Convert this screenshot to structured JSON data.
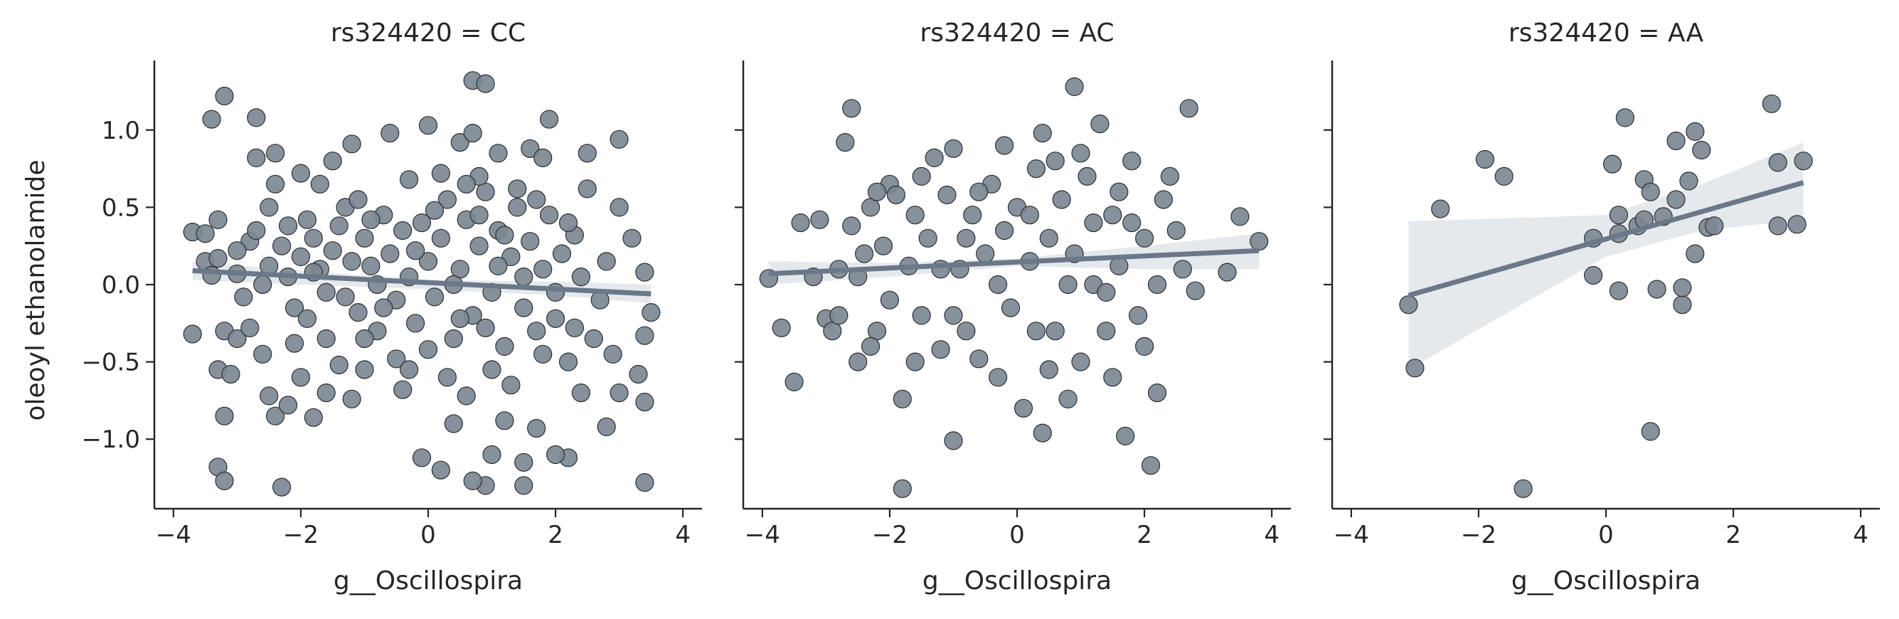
{
  "figure": {
    "ylabel": "oleoyl ethanolamide",
    "xlabel": "g__Oscillospira"
  },
  "colors": {
    "point_fill": "#7d8893",
    "point_stroke": "#2b2f33",
    "line": "#6b7889",
    "band": "#dde2e6",
    "axis": "#262626"
  },
  "chart_data": [
    {
      "type": "scatter",
      "title": "rs324420 = CC",
      "xlabel": "g__Oscillospira",
      "ylabel": "oleoyl ethanolamide",
      "xlim": [
        -4.3,
        4.3
      ],
      "ylim": [
        -1.45,
        1.45
      ],
      "xticks": [
        -4,
        -2,
        0,
        2,
        4
      ],
      "yticks": [
        -1.0,
        -0.5,
        0.0,
        0.5,
        1.0
      ],
      "xtick_labels": [
        "−4",
        "−2",
        "0",
        "2",
        "4"
      ],
      "ytick_labels": [
        "−1.0",
        "−0.5",
        "0.0",
        "0.5",
        "1.0"
      ],
      "regression": {
        "x": [
          -3.7,
          3.5
        ],
        "y": [
          0.09,
          -0.06
        ],
        "band_x": [
          -3.7,
          -2,
          0,
          2,
          3.5
        ],
        "band_lo": [
          0.03,
          0.0,
          -0.03,
          -0.07,
          -0.12
        ],
        "band_hi": [
          0.15,
          0.09,
          0.03,
          0.02,
          0.0
        ]
      },
      "points": [
        [
          -3.4,
          1.07
        ],
        [
          -3.2,
          1.22
        ],
        [
          -2.7,
          1.08
        ],
        [
          -3.7,
          0.34
        ],
        [
          -3.5,
          0.33
        ],
        [
          -3.3,
          0.42
        ],
        [
          -3.5,
          0.15
        ],
        [
          -3.3,
          0.17
        ],
        [
          -3.0,
          0.07
        ],
        [
          -3.4,
          0.06
        ],
        [
          -3.7,
          -0.32
        ],
        [
          -3.2,
          -0.3
        ],
        [
          -3.0,
          -0.35
        ],
        [
          -3.3,
          -0.55
        ],
        [
          -3.1,
          -0.58
        ],
        [
          -3.2,
          -0.85
        ],
        [
          -3.3,
          -1.18
        ],
        [
          -3.2,
          -1.27
        ],
        [
          -2.3,
          -1.31
        ],
        [
          -2.8,
          -0.28
        ],
        [
          -2.6,
          -0.45
        ],
        [
          -2.5,
          -0.72
        ],
        [
          -2.4,
          -0.85
        ],
        [
          -2.2,
          -0.78
        ],
        [
          -2.0,
          -0.6
        ],
        [
          -1.8,
          -0.86
        ],
        [
          -1.6,
          -0.7
        ],
        [
          -1.4,
          -0.52
        ],
        [
          -1.2,
          -0.74
        ],
        [
          -1.0,
          -0.55
        ],
        [
          -2.8,
          0.28
        ],
        [
          -2.7,
          0.35
        ],
        [
          -2.5,
          0.5
        ],
        [
          -2.4,
          0.65
        ],
        [
          -2.3,
          0.25
        ],
        [
          -2.2,
          0.05
        ],
        [
          -2.1,
          -0.15
        ],
        [
          -2.0,
          0.18
        ],
        [
          -1.9,
          0.42
        ],
        [
          -1.8,
          0.3
        ],
        [
          -1.7,
          0.1
        ],
        [
          -1.6,
          -0.05
        ],
        [
          -1.5,
          0.22
        ],
        [
          -1.4,
          0.38
        ],
        [
          -1.3,
          0.5
        ],
        [
          -1.2,
          0.15
        ],
        [
          -1.1,
          -0.18
        ],
        [
          -1.0,
          0.3
        ],
        [
          -0.9,
          0.12
        ],
        [
          -0.8,
          -0.3
        ],
        [
          -0.7,
          0.45
        ],
        [
          -0.6,
          0.2
        ],
        [
          -0.5,
          -0.1
        ],
        [
          -0.4,
          0.35
        ],
        [
          -0.3,
          0.05
        ],
        [
          -0.2,
          -0.25
        ],
        [
          -0.1,
          0.4
        ],
        [
          0.0,
          0.15
        ],
        [
          0.1,
          -0.08
        ],
        [
          0.2,
          0.3
        ],
        [
          0.3,
          0.55
        ],
        [
          0.4,
          -0.35
        ],
        [
          0.5,
          0.1
        ],
        [
          0.6,
          0.42
        ],
        [
          0.7,
          -0.2
        ],
        [
          0.8,
          0.25
        ],
        [
          0.9,
          0.6
        ],
        [
          1.0,
          -0.05
        ],
        [
          1.1,
          0.35
        ],
        [
          1.2,
          -0.4
        ],
        [
          1.3,
          0.18
        ],
        [
          1.4,
          0.5
        ],
        [
          1.5,
          -0.15
        ],
        [
          1.6,
          0.28
        ],
        [
          1.7,
          -0.3
        ],
        [
          1.8,
          0.1
        ],
        [
          1.9,
          0.45
        ],
        [
          2.0,
          -0.22
        ],
        [
          2.1,
          0.2
        ],
        [
          2.2,
          -0.5
        ],
        [
          2.3,
          0.32
        ],
        [
          2.4,
          0.05
        ],
        [
          2.5,
          0.62
        ],
        [
          2.6,
          -0.35
        ],
        [
          2.8,
          0.15
        ],
        [
          3.0,
          0.5
        ],
        [
          3.2,
          0.3
        ],
        [
          3.4,
          0.08
        ],
        [
          3.5,
          -0.18
        ],
        [
          3.4,
          -0.33
        ],
        [
          3.3,
          -0.58
        ],
        [
          3.4,
          -0.76
        ],
        [
          3.0,
          -0.7
        ],
        [
          2.8,
          -0.92
        ],
        [
          3.4,
          -1.28
        ],
        [
          2.2,
          -1.12
        ],
        [
          2.0,
          -1.1
        ],
        [
          1.5,
          -1.15
        ],
        [
          1.5,
          -1.3
        ],
        [
          0.9,
          -1.3
        ],
        [
          1.0,
          -1.1
        ],
        [
          0.7,
          -1.27
        ],
        [
          0.2,
          -1.2
        ],
        [
          -0.1,
          -1.12
        ],
        [
          0.4,
          -0.9
        ],
        [
          0.6,
          -0.72
        ],
        [
          1.2,
          -0.88
        ],
        [
          1.7,
          -0.93
        ],
        [
          2.4,
          -0.7
        ],
        [
          -2.7,
          0.82
        ],
        [
          -2.4,
          0.85
        ],
        [
          -2.0,
          0.72
        ],
        [
          -1.7,
          0.65
        ],
        [
          -1.5,
          0.8
        ],
        [
          -1.2,
          0.91
        ],
        [
          -0.6,
          0.98
        ],
        [
          0.0,
          1.03
        ],
        [
          0.5,
          0.92
        ],
        [
          0.7,
          1.32
        ],
        [
          0.9,
          1.3
        ],
        [
          0.8,
          0.7
        ],
        [
          1.1,
          0.85
        ],
        [
          1.6,
          0.88
        ],
        [
          1.8,
          0.82
        ],
        [
          1.9,
          1.07
        ],
        [
          2.5,
          0.85
        ],
        [
          3.0,
          0.94
        ],
        [
          0.7,
          0.98
        ],
        [
          -0.3,
          0.68
        ],
        [
          0.2,
          0.72
        ],
        [
          1.4,
          0.62
        ],
        [
          -1.0,
          -0.35
        ],
        [
          -0.5,
          -0.48
        ],
        [
          0.0,
          -0.42
        ],
        [
          0.3,
          -0.6
        ],
        [
          1.0,
          -0.55
        ],
        [
          -2.6,
          0.0
        ],
        [
          -1.9,
          -0.22
        ],
        [
          -0.8,
          0.0
        ],
        [
          0.4,
          0.0
        ],
        [
          1.5,
          0.05
        ],
        [
          2.7,
          -0.1
        ],
        [
          -1.3,
          -0.08
        ],
        [
          -0.2,
          0.22
        ],
        [
          0.9,
          -0.28
        ],
        [
          2.2,
          0.4
        ],
        [
          -3.0,
          0.22
        ],
        [
          -2.9,
          -0.08
        ],
        [
          -2.2,
          0.38
        ],
        [
          -1.1,
          0.55
        ],
        [
          0.6,
          0.65
        ],
        [
          1.8,
          -0.45
        ],
        [
          2.9,
          -0.45
        ],
        [
          -0.4,
          -0.68
        ],
        [
          1.3,
          -0.65
        ],
        [
          -2.5,
          0.12
        ],
        [
          -1.6,
          -0.35
        ],
        [
          -0.7,
          -0.15
        ],
        [
          0.1,
          0.48
        ],
        [
          1.1,
          0.12
        ],
        [
          2.0,
          -0.05
        ],
        [
          -2.1,
          -0.38
        ],
        [
          -0.3,
          -0.55
        ],
        [
          0.8,
          0.45
        ],
        [
          1.7,
          0.55
        ],
        [
          -1.8,
          0.08
        ],
        [
          -0.9,
          0.42
        ],
        [
          0.5,
          -0.22
        ],
        [
          1.2,
          0.32
        ],
        [
          2.3,
          -0.28
        ]
      ]
    },
    {
      "type": "scatter",
      "title": "rs324420 = AC",
      "xlabel": "g__Oscillospira",
      "ylabel": "",
      "xlim": [
        -4.3,
        4.3
      ],
      "ylim": [
        -1.45,
        1.45
      ],
      "xticks": [
        -4,
        -2,
        0,
        2,
        4
      ],
      "yticks": [
        -1.0,
        -0.5,
        0.0,
        0.5,
        1.0
      ],
      "xtick_labels": [
        "−4",
        "−2",
        "0",
        "2",
        "4"
      ],
      "ytick_labels": [
        "",
        "",
        "",
        "",
        ""
      ],
      "regression": {
        "x": [
          -3.9,
          3.8
        ],
        "y": [
          0.07,
          0.22
        ],
        "band_x": [
          -3.9,
          -2,
          0,
          2,
          3.8
        ],
        "band_lo": [
          0.0,
          0.05,
          0.12,
          0.1,
          0.1
        ],
        "band_hi": [
          0.15,
          0.14,
          0.17,
          0.25,
          0.33
        ]
      },
      "points": [
        [
          -3.9,
          0.04
        ],
        [
          -3.7,
          -0.28
        ],
        [
          -3.5,
          -0.63
        ],
        [
          -3.1,
          0.42
        ],
        [
          -3.0,
          -0.22
        ],
        [
          -2.9,
          -0.3
        ],
        [
          -2.8,
          0.1
        ],
        [
          -2.7,
          0.92
        ],
        [
          -2.6,
          1.14
        ],
        [
          -2.6,
          0.38
        ],
        [
          -2.5,
          -0.5
        ],
        [
          -2.4,
          0.2
        ],
        [
          -2.3,
          0.5
        ],
        [
          -2.2,
          -0.3
        ],
        [
          -2.1,
          0.25
        ],
        [
          -2.0,
          0.65
        ],
        [
          -1.9,
          0.58
        ],
        [
          -1.8,
          -0.74
        ],
        [
          -1.8,
          -1.32
        ],
        [
          -1.7,
          0.12
        ],
        [
          -1.6,
          0.45
        ],
        [
          -1.5,
          -0.2
        ],
        [
          -1.4,
          0.3
        ],
        [
          -1.3,
          0.82
        ],
        [
          -1.2,
          -0.42
        ],
        [
          -1.1,
          0.58
        ],
        [
          -1.0,
          -1.01
        ],
        [
          -1.0,
          0.88
        ],
        [
          -0.9,
          0.1
        ],
        [
          -0.8,
          -0.3
        ],
        [
          -0.7,
          0.45
        ],
        [
          -0.6,
          -0.48
        ],
        [
          -0.5,
          0.2
        ],
        [
          -0.4,
          0.65
        ],
        [
          -0.3,
          -0.6
        ],
        [
          -0.2,
          0.35
        ],
        [
          -0.1,
          -0.15
        ],
        [
          0.0,
          0.5
        ],
        [
          0.1,
          -0.8
        ],
        [
          0.2,
          0.15
        ],
        [
          0.3,
          0.75
        ],
        [
          0.4,
          -0.96
        ],
        [
          0.4,
          0.98
        ],
        [
          0.5,
          0.3
        ],
        [
          0.6,
          -0.3
        ],
        [
          0.7,
          0.55
        ],
        [
          0.8,
          -0.74
        ],
        [
          0.9,
          1.28
        ],
        [
          0.9,
          0.2
        ],
        [
          1.0,
          -0.5
        ],
        [
          1.1,
          0.7
        ],
        [
          1.2,
          0.0
        ],
        [
          1.3,
          1.04
        ],
        [
          1.4,
          -0.3
        ],
        [
          1.5,
          0.45
        ],
        [
          1.6,
          0.12
        ],
        [
          1.7,
          -0.98
        ],
        [
          1.8,
          0.4
        ],
        [
          1.9,
          -0.2
        ],
        [
          2.0,
          0.3
        ],
        [
          2.1,
          -1.17
        ],
        [
          2.2,
          -0.7
        ],
        [
          2.3,
          0.55
        ],
        [
          2.4,
          0.7
        ],
        [
          2.6,
          0.1
        ],
        [
          2.7,
          1.14
        ],
        [
          2.8,
          -0.04
        ],
        [
          3.3,
          0.08
        ],
        [
          3.5,
          0.44
        ],
        [
          3.8,
          0.28
        ],
        [
          -3.2,
          0.05
        ],
        [
          -2.0,
          -0.1
        ],
        [
          -1.5,
          0.7
        ],
        [
          -0.8,
          0.3
        ],
        [
          0.2,
          0.45
        ],
        [
          1.0,
          0.85
        ],
        [
          1.6,
          0.6
        ],
        [
          2.5,
          0.35
        ],
        [
          -2.8,
          -0.2
        ],
        [
          -2.2,
          0.6
        ],
        [
          -1.2,
          0.1
        ],
        [
          -0.3,
          0.0
        ],
        [
          0.6,
          0.8
        ],
        [
          1.4,
          -0.05
        ],
        [
          2.2,
          0.0
        ],
        [
          -3.4,
          0.4
        ],
        [
          -2.5,
          0.05
        ],
        [
          -1.6,
          -0.5
        ],
        [
          -0.6,
          0.6
        ],
        [
          0.3,
          -0.3
        ],
        [
          1.2,
          0.4
        ],
        [
          2.0,
          -0.4
        ],
        [
          -1.0,
          -0.2
        ],
        [
          0.8,
          0.0
        ],
        [
          1.8,
          0.8
        ],
        [
          -2.3,
          -0.4
        ],
        [
          -0.2,
          0.9
        ],
        [
          0.5,
          -0.55
        ],
        [
          1.5,
          -0.6
        ]
      ]
    },
    {
      "type": "scatter",
      "title": "rs324420 = AA",
      "xlabel": "g__Oscillospira",
      "ylabel": "",
      "xlim": [
        -4.3,
        4.3
      ],
      "ylim": [
        -1.45,
        1.45
      ],
      "xticks": [
        -4,
        -2,
        0,
        2,
        4
      ],
      "yticks": [
        -1.0,
        -0.5,
        0.0,
        0.5,
        1.0
      ],
      "xtick_labels": [
        "−4",
        "−2",
        "0",
        "2",
        "4"
      ],
      "ytick_labels": [
        "",
        "",
        "",
        "",
        ""
      ],
      "regression": {
        "x": [
          -3.1,
          3.1
        ],
        "y": [
          -0.07,
          0.66
        ],
        "band_x": [
          -3.1,
          -1.5,
          0,
          1.5,
          3.1
        ],
        "band_lo": [
          -0.55,
          -0.17,
          0.18,
          0.35,
          0.42
        ],
        "band_hi": [
          0.41,
          0.43,
          0.45,
          0.65,
          0.92
        ]
      },
      "points": [
        [
          -3.1,
          -0.13
        ],
        [
          -3.0,
          -0.54
        ],
        [
          -2.6,
          0.49
        ],
        [
          -1.9,
          0.81
        ],
        [
          -1.6,
          0.7
        ],
        [
          -1.3,
          -1.32
        ],
        [
          -0.2,
          0.3
        ],
        [
          -0.2,
          0.06
        ],
        [
          0.1,
          0.78
        ],
        [
          0.2,
          0.33
        ],
        [
          0.2,
          0.45
        ],
        [
          0.2,
          -0.04
        ],
        [
          0.3,
          1.08
        ],
        [
          0.5,
          0.38
        ],
        [
          0.6,
          0.42
        ],
        [
          0.6,
          0.68
        ],
        [
          0.7,
          0.6
        ],
        [
          0.7,
          -0.95
        ],
        [
          0.8,
          -0.03
        ],
        [
          0.9,
          0.44
        ],
        [
          1.1,
          0.93
        ],
        [
          1.1,
          0.55
        ],
        [
          1.2,
          -0.13
        ],
        [
          1.2,
          -0.02
        ],
        [
          1.3,
          0.67
        ],
        [
          1.4,
          0.99
        ],
        [
          1.4,
          0.2
        ],
        [
          1.5,
          0.87
        ],
        [
          1.6,
          0.37
        ],
        [
          1.7,
          0.38
        ],
        [
          2.6,
          1.17
        ],
        [
          2.7,
          0.38
        ],
        [
          2.7,
          0.79
        ],
        [
          3.0,
          0.39
        ],
        [
          3.1,
          0.8
        ]
      ]
    }
  ]
}
